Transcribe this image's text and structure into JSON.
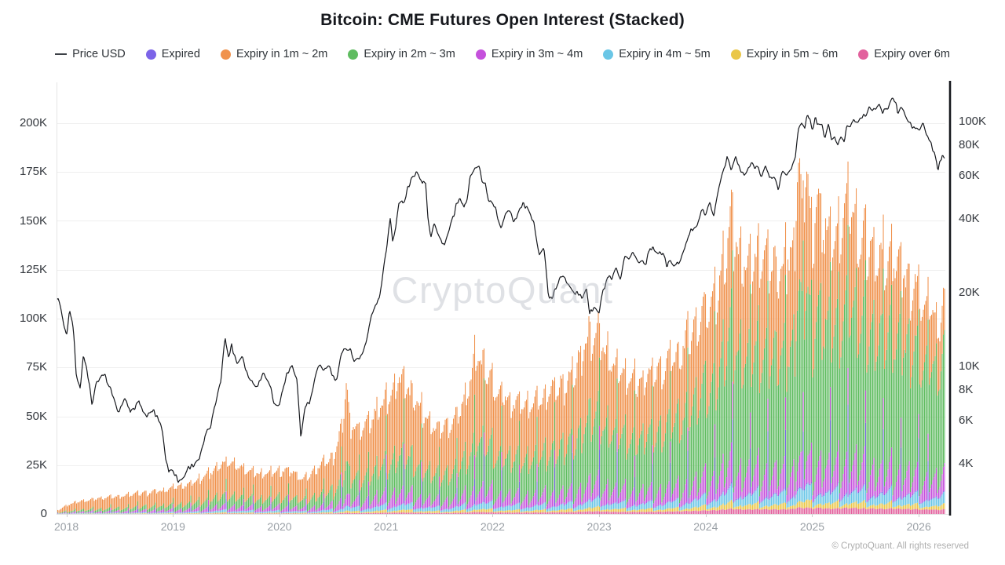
{
  "title": "Bitcoin: CME Futures Open Interest (Stacked)",
  "watermark": "CryptoQuant",
  "footer": "© CryptoQuant. All rights reserved",
  "legend": [
    {
      "label": "Price USD",
      "marker": "line",
      "color": "#3c4046"
    },
    {
      "label": "Expired",
      "marker": "dot",
      "color": "#7c64e8"
    },
    {
      "label": "Expiry in 1m ~ 2m",
      "marker": "dot",
      "color": "#f0924d"
    },
    {
      "label": "Expiry in 2m ~ 3m",
      "marker": "dot",
      "color": "#5fbc60"
    },
    {
      "label": "Expiry in 3m ~ 4m",
      "marker": "dot",
      "color": "#c551dc"
    },
    {
      "label": "Expiry in 4m ~ 5m",
      "marker": "dot",
      "color": "#6ac6e6"
    },
    {
      "label": "Expiry in 5m ~ 6m",
      "marker": "dot",
      "color": "#eac748"
    },
    {
      "label": "Expiry over 6m",
      "marker": "dot",
      "color": "#e2619d"
    }
  ],
  "chart_data": {
    "type": "combo",
    "title": "Bitcoin: CME Futures Open Interest (Stacked)",
    "x_axis": {
      "labels": [
        "2018",
        "2019",
        "2020",
        "2021",
        "2022",
        "2023",
        "2024",
        "2025",
        "2026"
      ],
      "values": [
        2018,
        2019,
        2020,
        2021,
        2022,
        2023,
        2024,
        2025,
        2026
      ],
      "range": [
        2017.91,
        2026.27
      ]
    },
    "left_axis": {
      "title": "Open Interest (stacked by expiry)",
      "unit": "K",
      "labels": [
        "0",
        "25K",
        "50K",
        "75K",
        "100K",
        "125K",
        "150K",
        "175K",
        "200K"
      ],
      "values_k": [
        0,
        25,
        50,
        75,
        100,
        125,
        150,
        175,
        200
      ],
      "max_k": 221,
      "scale": "linear"
    },
    "right_axis": {
      "title": "Price USD",
      "scale": "log",
      "labels": [
        "4K",
        "6K",
        "8K",
        "10K",
        "20K",
        "40K",
        "60K",
        "80K",
        "100K"
      ],
      "values_k": [
        4,
        6,
        8,
        10,
        20,
        40,
        60,
        80,
        100
      ]
    },
    "grid": "horizontal",
    "legend_position": "top",
    "price_line_color": "#16181d",
    "stack_order_bottom_to_top": [
      "expiry_over_6m",
      "expiry_5m_6m",
      "expiry_4m_5m",
      "expired",
      "expiry_3m_4m",
      "expiry_2m_3m",
      "expiry_1m_2m"
    ],
    "stack_colors": {
      "expired": "#7c64e8",
      "expiry_1m_2m": "#f0924d",
      "expiry_2m_3m": "#5fbc60",
      "expiry_3m_4m": "#c551dc",
      "expiry_4m_5m": "#6ac6e6",
      "expiry_5m_6m": "#eac748",
      "expiry_over_6m": "#e2619d"
    },
    "price_usd_keyframes_k": [
      [
        2017.92,
        18.8
      ],
      [
        2017.96,
        16.0
      ],
      [
        2018.0,
        13.9
      ],
      [
        2018.03,
        16.8
      ],
      [
        2018.06,
        14.5
      ],
      [
        2018.09,
        9.8
      ],
      [
        2018.13,
        8.3
      ],
      [
        2018.16,
        11.1
      ],
      [
        2018.2,
        9.0
      ],
      [
        2018.24,
        7.0
      ],
      [
        2018.28,
        8.6
      ],
      [
        2018.32,
        9.0
      ],
      [
        2018.36,
        9.3
      ],
      [
        2018.4,
        8.4
      ],
      [
        2018.44,
        7.5
      ],
      [
        2018.48,
        6.4
      ],
      [
        2018.52,
        6.7
      ],
      [
        2018.56,
        7.4
      ],
      [
        2018.6,
        6.4
      ],
      [
        2018.64,
        6.9
      ],
      [
        2018.68,
        7.4
      ],
      [
        2018.72,
        6.3
      ],
      [
        2018.76,
        6.5
      ],
      [
        2018.8,
        6.7
      ],
      [
        2018.84,
        6.4
      ],
      [
        2018.87,
        6.3
      ],
      [
        2018.9,
        5.6
      ],
      [
        2018.93,
        4.3
      ],
      [
        2018.96,
        3.6
      ],
      [
        2019.0,
        3.8
      ],
      [
        2019.05,
        3.5
      ],
      [
        2019.1,
        3.6
      ],
      [
        2019.15,
        3.9
      ],
      [
        2019.2,
        4.0
      ],
      [
        2019.25,
        4.1
      ],
      [
        2019.3,
        5.1
      ],
      [
        2019.35,
        5.6
      ],
      [
        2019.4,
        7.2
      ],
      [
        2019.45,
        8.7
      ],
      [
        2019.49,
        12.9
      ],
      [
        2019.52,
        10.8
      ],
      [
        2019.55,
        12.0
      ],
      [
        2019.6,
        10.0
      ],
      [
        2019.65,
        11.0
      ],
      [
        2019.7,
        9.5
      ],
      [
        2019.75,
        8.5
      ],
      [
        2019.8,
        8.2
      ],
      [
        2019.85,
        9.3
      ],
      [
        2019.9,
        8.5
      ],
      [
        2019.95,
        7.2
      ],
      [
        2020.0,
        7.2
      ],
      [
        2020.04,
        8.4
      ],
      [
        2020.08,
        9.4
      ],
      [
        2020.12,
        10.3
      ],
      [
        2020.16,
        8.9
      ],
      [
        2020.2,
        4.9
      ],
      [
        2020.24,
        6.7
      ],
      [
        2020.28,
        6.9
      ],
      [
        2020.33,
        8.8
      ],
      [
        2020.38,
        9.9
      ],
      [
        2020.42,
        9.4
      ],
      [
        2020.46,
        9.7
      ],
      [
        2020.5,
        9.1
      ],
      [
        2020.54,
        9.2
      ],
      [
        2020.58,
        11.4
      ],
      [
        2020.62,
        11.8
      ],
      [
        2020.66,
        11.5
      ],
      [
        2020.7,
        10.4
      ],
      [
        2020.74,
        10.7
      ],
      [
        2020.78,
        11.5
      ],
      [
        2020.82,
        13.1
      ],
      [
        2020.86,
        15.6
      ],
      [
        2020.9,
        18.2
      ],
      [
        2020.94,
        19.2
      ],
      [
        2020.97,
        23.8
      ],
      [
        2021.0,
        29.0
      ],
      [
        2021.02,
        34.0
      ],
      [
        2021.04,
        39.5
      ],
      [
        2021.06,
        31.5
      ],
      [
        2021.09,
        36.0
      ],
      [
        2021.12,
        46.5
      ],
      [
        2021.15,
        49.0
      ],
      [
        2021.17,
        45.5
      ],
      [
        2021.2,
        52.0
      ],
      [
        2021.24,
        58.0
      ],
      [
        2021.28,
        61.5
      ],
      [
        2021.3,
        64.0
      ],
      [
        2021.34,
        54.5
      ],
      [
        2021.37,
        57.0
      ],
      [
        2021.39,
        43.0
      ],
      [
        2021.42,
        34.5
      ],
      [
        2021.45,
        38.0
      ],
      [
        2021.48,
        35.5
      ],
      [
        2021.52,
        33.5
      ],
      [
        2021.55,
        31.0
      ],
      [
        2021.58,
        34.5
      ],
      [
        2021.62,
        39.5
      ],
      [
        2021.66,
        46.0
      ],
      [
        2021.7,
        48.8
      ],
      [
        2021.73,
        44.0
      ],
      [
        2021.76,
        48.0
      ],
      [
        2021.8,
        61.5
      ],
      [
        2021.84,
        64.5
      ],
      [
        2021.87,
        68.0
      ],
      [
        2021.9,
        58.0
      ],
      [
        2021.93,
        57.3
      ],
      [
        2021.96,
        50.0
      ],
      [
        2022.0,
        46.2
      ],
      [
        2022.04,
        41.5
      ],
      [
        2022.08,
        36.8
      ],
      [
        2022.12,
        42.5
      ],
      [
        2022.16,
        44.0
      ],
      [
        2022.2,
        39.0
      ],
      [
        2022.24,
        42.5
      ],
      [
        2022.28,
        46.8
      ],
      [
        2022.32,
        45.0
      ],
      [
        2022.36,
        40.0
      ],
      [
        2022.4,
        36.0
      ],
      [
        2022.44,
        30.0
      ],
      [
        2022.48,
        29.5
      ],
      [
        2022.52,
        20.5
      ],
      [
        2022.56,
        19.0
      ],
      [
        2022.6,
        21.5
      ],
      [
        2022.64,
        23.3
      ],
      [
        2022.68,
        23.0
      ],
      [
        2022.72,
        21.5
      ],
      [
        2022.76,
        19.8
      ],
      [
        2022.8,
        19.3
      ],
      [
        2022.84,
        19.1
      ],
      [
        2022.88,
        20.8
      ],
      [
        2022.91,
        16.0
      ],
      [
        2022.95,
        16.8
      ],
      [
        2023.0,
        16.6
      ],
      [
        2023.04,
        21.0
      ],
      [
        2023.08,
        23.1
      ],
      [
        2023.12,
        21.8
      ],
      [
        2023.16,
        24.5
      ],
      [
        2023.2,
        22.4
      ],
      [
        2023.24,
        28.0
      ],
      [
        2023.28,
        28.4
      ],
      [
        2023.32,
        30.0
      ],
      [
        2023.36,
        27.7
      ],
      [
        2023.4,
        27.0
      ],
      [
        2023.44,
        26.3
      ],
      [
        2023.48,
        30.5
      ],
      [
        2023.52,
        30.3
      ],
      [
        2023.56,
        29.3
      ],
      [
        2023.6,
        29.2
      ],
      [
        2023.64,
        26.1
      ],
      [
        2023.68,
        26.0
      ],
      [
        2023.72,
        26.6
      ],
      [
        2023.76,
        27.5
      ],
      [
        2023.8,
        29.5
      ],
      [
        2023.84,
        34.7
      ],
      [
        2023.88,
        37.3
      ],
      [
        2023.92,
        38.7
      ],
      [
        2023.96,
        43.8
      ],
      [
        2024.0,
        42.3
      ],
      [
        2024.04,
        46.7
      ],
      [
        2024.08,
        43.1
      ],
      [
        2024.12,
        52.0
      ],
      [
        2024.16,
        62.5
      ],
      [
        2024.2,
        73.0
      ],
      [
        2024.24,
        63.8
      ],
      [
        2024.28,
        70.8
      ],
      [
        2024.32,
        63.4
      ],
      [
        2024.36,
        60.8
      ],
      [
        2024.4,
        67.0
      ],
      [
        2024.44,
        69.0
      ],
      [
        2024.48,
        64.9
      ],
      [
        2024.52,
        61.0
      ],
      [
        2024.56,
        66.5
      ],
      [
        2024.6,
        57.3
      ],
      [
        2024.64,
        60.7
      ],
      [
        2024.68,
        53.9
      ],
      [
        2024.72,
        64.1
      ],
      [
        2024.76,
        62.8
      ],
      [
        2024.8,
        67.0
      ],
      [
        2024.84,
        69.4
      ],
      [
        2024.87,
        91.0
      ],
      [
        2024.9,
        98.0
      ],
      [
        2024.93,
        95.9
      ],
      [
        2024.96,
        106.1
      ],
      [
        2025.0,
        93.4
      ],
      [
        2025.03,
        104.8
      ],
      [
        2025.06,
        97.5
      ],
      [
        2025.09,
        96.6
      ],
      [
        2025.12,
        86.0
      ],
      [
        2025.15,
        96.1
      ],
      [
        2025.18,
        83.7
      ],
      [
        2025.21,
        86.8
      ],
      [
        2025.24,
        82.4
      ],
      [
        2025.27,
        87.5
      ],
      [
        2025.3,
        82.6
      ],
      [
        2025.33,
        94.2
      ],
      [
        2025.36,
        97.0
      ],
      [
        2025.39,
        103.2
      ],
      [
        2025.42,
        96.5
      ],
      [
        2025.45,
        104.2
      ],
      [
        2025.48,
        105.6
      ],
      [
        2025.51,
        108.1
      ],
      [
        2025.54,
        118.0
      ],
      [
        2025.57,
        117.4
      ],
      [
        2025.6,
        115.8
      ],
      [
        2025.63,
        113.3
      ],
      [
        2025.66,
        110.0
      ],
      [
        2025.69,
        112.5
      ],
      [
        2025.72,
        115.8
      ],
      [
        2025.75,
        122.5
      ],
      [
        2025.78,
        121.0
      ],
      [
        2025.8,
        109.0
      ],
      [
        2025.83,
        115.0
      ],
      [
        2025.86,
        110.5
      ],
      [
        2025.89,
        103.0
      ],
      [
        2025.92,
        96.5
      ],
      [
        2025.95,
        91.0
      ],
      [
        2025.98,
        94.0
      ],
      [
        2026.01,
        92.0
      ],
      [
        2026.04,
        98.0
      ],
      [
        2026.07,
        88.0
      ],
      [
        2026.1,
        84.0
      ],
      [
        2026.13,
        76.0
      ],
      [
        2026.16,
        68.0
      ],
      [
        2026.18,
        62.5
      ],
      [
        2026.2,
        66.0
      ],
      [
        2026.22,
        70.5
      ],
      [
        2026.24,
        67.5
      ],
      [
        2026.26,
        68.5
      ]
    ],
    "open_interest_envelope_keyframes_k": [
      [
        2017.92,
        2
      ],
      [
        2018.0,
        5
      ],
      [
        2018.1,
        7
      ],
      [
        2018.2,
        8
      ],
      [
        2018.3,
        9
      ],
      [
        2018.45,
        10
      ],
      [
        2018.6,
        11
      ],
      [
        2018.75,
        12
      ],
      [
        2018.9,
        13
      ],
      [
        2019.0,
        15
      ],
      [
        2019.15,
        17
      ],
      [
        2019.3,
        22
      ],
      [
        2019.42,
        27
      ],
      [
        2019.55,
        30
      ],
      [
        2019.65,
        26
      ],
      [
        2019.8,
        23
      ],
      [
        2019.95,
        24
      ],
      [
        2020.1,
        25
      ],
      [
        2020.22,
        19
      ],
      [
        2020.35,
        26
      ],
      [
        2020.5,
        33
      ],
      [
        2020.58,
        48
      ],
      [
        2020.62,
        75
      ],
      [
        2020.66,
        52
      ],
      [
        2020.75,
        48
      ],
      [
        2020.85,
        52
      ],
      [
        2020.95,
        62
      ],
      [
        2021.05,
        70
      ],
      [
        2021.12,
        78
      ],
      [
        2021.2,
        70
      ],
      [
        2021.3,
        62
      ],
      [
        2021.4,
        52
      ],
      [
        2021.5,
        48
      ],
      [
        2021.6,
        52
      ],
      [
        2021.7,
        60
      ],
      [
        2021.78,
        72
      ],
      [
        2021.83,
        95
      ],
      [
        2021.88,
        85
      ],
      [
        2021.95,
        78
      ],
      [
        2022.05,
        70
      ],
      [
        2022.15,
        64
      ],
      [
        2022.25,
        62
      ],
      [
        2022.35,
        60
      ],
      [
        2022.45,
        64
      ],
      [
        2022.55,
        72
      ],
      [
        2022.65,
        74
      ],
      [
        2022.75,
        78
      ],
      [
        2022.85,
        95
      ],
      [
        2022.95,
        105
      ],
      [
        2023.05,
        92
      ],
      [
        2023.15,
        83
      ],
      [
        2023.25,
        77
      ],
      [
        2023.35,
        75
      ],
      [
        2023.45,
        78
      ],
      [
        2023.55,
        82
      ],
      [
        2023.65,
        86
      ],
      [
        2023.75,
        92
      ],
      [
        2023.85,
        102
      ],
      [
        2023.95,
        112
      ],
      [
        2024.05,
        120
      ],
      [
        2024.15,
        135
      ],
      [
        2024.22,
        165
      ],
      [
        2024.3,
        150
      ],
      [
        2024.4,
        138
      ],
      [
        2024.5,
        148
      ],
      [
        2024.6,
        142
      ],
      [
        2024.7,
        136
      ],
      [
        2024.78,
        150
      ],
      [
        2024.83,
        155
      ],
      [
        2024.86,
        212
      ],
      [
        2024.9,
        165
      ],
      [
        2024.94,
        205
      ],
      [
        2024.99,
        158
      ],
      [
        2025.04,
        178
      ],
      [
        2025.1,
        165
      ],
      [
        2025.2,
        158
      ],
      [
        2025.3,
        168
      ],
      [
        2025.36,
        178
      ],
      [
        2025.42,
        160
      ],
      [
        2025.5,
        155
      ],
      [
        2025.58,
        150
      ],
      [
        2025.66,
        145
      ],
      [
        2025.74,
        148
      ],
      [
        2025.82,
        140
      ],
      [
        2025.9,
        135
      ],
      [
        2025.98,
        128
      ],
      [
        2026.06,
        118
      ],
      [
        2026.14,
        112
      ],
      [
        2026.2,
        108
      ],
      [
        2026.26,
        128
      ]
    ],
    "composition": {
      "expiry_2m_3m_share_by_era": [
        [
          0,
          0.13
        ],
        [
          1,
          0.17
        ],
        [
          2,
          0.2
        ],
        [
          3,
          0.26
        ],
        [
          4,
          0.31
        ],
        [
          5,
          0.36
        ],
        [
          6,
          0.43
        ],
        [
          7,
          0.48
        ],
        [
          8.3,
          0.56
        ]
      ],
      "expiry_3m_4m_share": {
        "base": 0.025,
        "monthly_ramp": 0.115
      },
      "expiry_4m_5m_share": {
        "base": 0.02,
        "quarterly_ramp": 0.032
      },
      "expiry_5m_6m_share": {
        "base": 0.007,
        "quarterly_ramp": 0.02
      },
      "expiry_over_6m_share": {
        "base": 0.004,
        "per_year": 0.0022
      },
      "expired_share": {
        "base": 0.004,
        "expiry_window_phase": 0.93,
        "spike_min": 0.08,
        "spike_growth": 0.2
      },
      "monthly_sawtooth": {
        "min_factor": 0.78,
        "amplitude": 0.24
      },
      "expiry_1m_2m_share": "remainder"
    }
  }
}
